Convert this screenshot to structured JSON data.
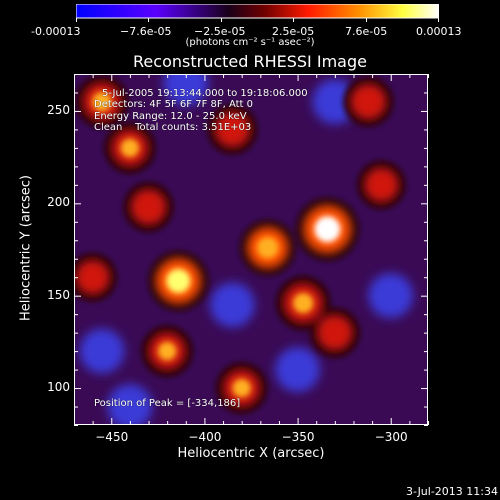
{
  "colorbar": {
    "tick_labels": [
      "-0.00013",
      "−7.6e-05",
      "−2.5e-05",
      "2.5e-05",
      "7.6e-05",
      "0.00013"
    ],
    "unit_label": "(photons cm⁻² s⁻¹ asec⁻²)",
    "colors": [
      "#0000ff",
      "#000000",
      "#ff0000",
      "#ffff00",
      "#ffffff"
    ]
  },
  "plot": {
    "title": "Reconstructed RHESSI Image",
    "x_axis_label": "Heliocentric X (arcsec)",
    "y_axis_label": "Heliocentric Y (arcsec)",
    "x_ticks": [
      "-450",
      "-400",
      "-350",
      "-300"
    ],
    "y_ticks": [
      "100",
      "150",
      "200",
      "250"
    ],
    "x_range": [
      -470,
      -280
    ],
    "y_range": [
      80,
      270
    ]
  },
  "info": {
    "line1": "5-Jul-2005 19:13:44.000 to 19:18:06.000",
    "line2": "Detectors: 4F 5F 6F 7F 8F, Att 0",
    "line3": "Energy Range: 12.0 - 25.0 keV",
    "line4": "Clean    Total counts: 3.51E+03",
    "peak": "Position of Peak = [-334,186]"
  },
  "footer": "3-Jul-2013 11:34",
  "chart_data": {
    "type": "heatmap",
    "title": "Reconstructed RHESSI Image",
    "xlabel": "Heliocentric X (arcsec)",
    "ylabel": "Heliocentric Y (arcsec)",
    "xlim": [
      -470,
      -280
    ],
    "ylim": [
      80,
      270
    ],
    "value_range": [
      -0.00013,
      0.00013
    ],
    "peak": [
      -334,
      186
    ],
    "hot_spots": [
      {
        "x": -334,
        "y": 186,
        "intensity": 1.0
      },
      {
        "x": -366,
        "y": 176,
        "intensity": 0.75
      },
      {
        "x": -414,
        "y": 158,
        "intensity": 0.9
      },
      {
        "x": -440,
        "y": 230,
        "intensity": 0.6
      },
      {
        "x": -430,
        "y": 198,
        "intensity": 0.55
      },
      {
        "x": -347,
        "y": 146,
        "intensity": 0.7
      },
      {
        "x": -330,
        "y": 130,
        "intensity": 0.55
      },
      {
        "x": -420,
        "y": 120,
        "intensity": 0.6
      },
      {
        "x": -455,
        "y": 255,
        "intensity": 0.65
      },
      {
        "x": -385,
        "y": 240,
        "intensity": 0.55
      },
      {
        "x": -312,
        "y": 255,
        "intensity": 0.55
      },
      {
        "x": -305,
        "y": 210,
        "intensity": 0.5
      },
      {
        "x": -380,
        "y": 100,
        "intensity": 0.6
      },
      {
        "x": -460,
        "y": 160,
        "intensity": 0.5
      }
    ],
    "cool_spots": [
      {
        "x": -410,
        "y": 265,
        "intensity": -0.55
      },
      {
        "x": -330,
        "y": 255,
        "intensity": -0.5
      },
      {
        "x": -350,
        "y": 110,
        "intensity": -0.6
      },
      {
        "x": -300,
        "y": 150,
        "intensity": -0.45
      },
      {
        "x": -440,
        "y": 90,
        "intensity": -0.45
      },
      {
        "x": -385,
        "y": 145,
        "intensity": -0.4
      },
      {
        "x": -455,
        "y": 120,
        "intensity": -0.35
      }
    ]
  }
}
